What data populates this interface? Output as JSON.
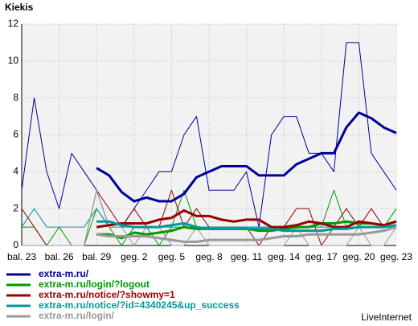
{
  "chart_data": {
    "type": "line",
    "title": "Kiekis",
    "footer": "LiveInternet",
    "categories": [
      "bal. 23",
      null,
      null,
      "bal. 26",
      null,
      null,
      "bal. 29",
      null,
      null,
      "geg. 2",
      null,
      null,
      "geg. 5",
      null,
      null,
      "geg. 8",
      null,
      null,
      "geg. 11",
      null,
      null,
      "geg. 14",
      null,
      null,
      "geg. 17",
      null,
      null,
      "geg. 20",
      null,
      null,
      "geg. 23"
    ],
    "ylim": [
      0,
      12
    ],
    "yticks": [
      0,
      2,
      4,
      6,
      8,
      10,
      12
    ],
    "grid": true,
    "series": [
      {
        "name": "extra-m.ru/",
        "color": "#000099",
        "values": [
          3,
          8,
          4,
          2,
          5,
          4,
          3,
          1,
          1,
          2,
          3,
          4,
          4,
          6,
          7,
          3,
          3,
          3,
          4,
          1,
          6,
          7,
          7,
          5,
          5,
          4,
          11,
          11,
          5,
          4,
          3
        ],
        "trend": [
          null,
          null,
          null,
          null,
          null,
          null,
          4.2,
          3.8,
          2.9,
          2.4,
          2.6,
          2.4,
          2.4,
          2.8,
          3.7,
          4.0,
          4.3,
          4.3,
          4.3,
          3.8,
          3.8,
          3.8,
          4.4,
          4.7,
          5.0,
          5.0,
          6.4,
          7.2,
          6.9,
          6.4,
          6.1
        ]
      },
      {
        "name": "extra-m.ru/login/?logout",
        "color": "#009900",
        "values": [
          1,
          1,
          0,
          1,
          0,
          0,
          2,
          1,
          0,
          1,
          1,
          0,
          1,
          3,
          1,
          1,
          1,
          1,
          1,
          1,
          1,
          1,
          1,
          1,
          1,
          3,
          1,
          1,
          1,
          1,
          2
        ],
        "trend": [
          null,
          null,
          null,
          null,
          null,
          null,
          0.6,
          0.6,
          0.4,
          0.7,
          0.6,
          0.7,
          0.8,
          1.0,
          0.9,
          0.9,
          0.9,
          0.9,
          0.9,
          0.8,
          0.8,
          0.9,
          1.0,
          1.0,
          1.2,
          1.2,
          1.3,
          1.2,
          1.2,
          1.1,
          1.3
        ]
      },
      {
        "name": "extra-m.ru/notice/?showmy=1",
        "color": "#990000",
        "values": [
          2,
          1,
          0,
          0,
          0,
          0,
          3,
          2,
          1,
          2,
          1,
          1,
          3,
          1,
          2,
          1,
          1,
          1,
          1,
          0,
          1,
          1,
          2,
          2,
          0,
          1,
          2,
          1,
          2,
          1,
          1
        ],
        "trend": [
          null,
          null,
          null,
          null,
          null,
          null,
          1.0,
          1.1,
          1.2,
          1.2,
          1.2,
          1.4,
          1.5,
          1.9,
          1.6,
          1.6,
          1.4,
          1.3,
          1.4,
          1.4,
          1.0,
          1.0,
          1.1,
          1.3,
          1.2,
          1.0,
          1.0,
          1.3,
          1.2,
          1.1,
          1.3
        ]
      },
      {
        "name": "extra-m.ru/notice/?id=4340245&up_success",
        "color": "#009999",
        "values": [
          1,
          2,
          1,
          1,
          1,
          1,
          2,
          1,
          1,
          1,
          1,
          1,
          1,
          1,
          1,
          1,
          1,
          1,
          1,
          1,
          1,
          1,
          1,
          1,
          1,
          1,
          1,
          1,
          1,
          1,
          1
        ],
        "trend": [
          null,
          null,
          null,
          null,
          null,
          null,
          1.3,
          1.3,
          1.1,
          1.0,
          1.0,
          1.0,
          1.1,
          1.2,
          1.0,
          0.9,
          0.9,
          0.9,
          0.9,
          0.9,
          0.9,
          0.8,
          0.8,
          0.8,
          0.8,
          0.9,
          0.9,
          1.0,
          1.0,
          1.0,
          1.1
        ]
      },
      {
        "name": "extra-m.ru/login/",
        "color": "#999999",
        "values": [
          0,
          0,
          0,
          0,
          0,
          0,
          3,
          1,
          1,
          0,
          1,
          1,
          0,
          0,
          1,
          0,
          0,
          0,
          0,
          0,
          0,
          0,
          1,
          0,
          0,
          0,
          0,
          1,
          0,
          0,
          1
        ],
        "trend": [
          null,
          null,
          null,
          null,
          null,
          null,
          0.6,
          0.5,
          0.5,
          0.5,
          0.5,
          0.4,
          0.3,
          0.2,
          0.2,
          0.3,
          0.3,
          0.3,
          0.3,
          0.3,
          0.4,
          0.5,
          0.5,
          0.6,
          0.6,
          0.6,
          0.6,
          0.6,
          0.7,
          0.8,
          1.0
        ]
      }
    ]
  }
}
